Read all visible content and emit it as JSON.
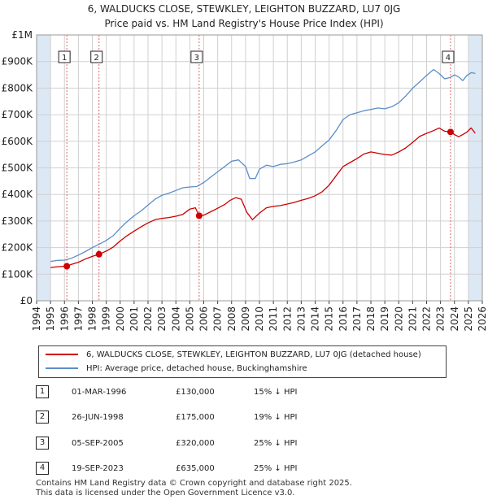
{
  "title_line1": "6, WALDUCKS CLOSE, STEWKLEY, LEIGHTON BUZZARD, LU7 0JG",
  "title_line2": "Price paid vs. HM Land Registry's House Price Index (HPI)",
  "legend": {
    "property": "6, WALDUCKS CLOSE, STEWKLEY, LEIGHTON BUZZARD, LU7 0JG (detached house)",
    "hpi": "HPI: Average price, detached house, Buckinghamshire"
  },
  "colors": {
    "property": "#cc0000",
    "hpi": "#5b8ec9",
    "sale_line": "#e06666",
    "band": "#dde8f5",
    "grid": "#d0d0d0"
  },
  "sales": [
    {
      "num": "1",
      "date": "01-MAR-1996",
      "price": "£130,000",
      "hpi_diff": "15% ↓ HPI"
    },
    {
      "num": "2",
      "date": "26-JUN-1998",
      "price": "£175,000",
      "hpi_diff": "19% ↓ HPI"
    },
    {
      "num": "3",
      "date": "05-SEP-2005",
      "price": "£320,000",
      "hpi_diff": "25% ↓ HPI"
    },
    {
      "num": "4",
      "date": "19-SEP-2023",
      "price": "£635,000",
      "hpi_diff": "25% ↓ HPI"
    }
  ],
  "footer_line1": "Contains HM Land Registry data © Crown copyright and database right 2025.",
  "footer_line2": "This data is licensed under the Open Government Licence v3.0.",
  "chart_data": {
    "type": "line",
    "title": "6, WALDUCKS CLOSE, STEWKLEY, LEIGHTON BUZZARD, LU7 0JG",
    "subtitle": "Price paid vs. HM Land Registry's House Price Index (HPI)",
    "xlim": [
      1994,
      2026
    ],
    "ylim": [
      0,
      1000000
    ],
    "x_ticks": [
      1994,
      1995,
      1996,
      1997,
      1998,
      1999,
      2000,
      2001,
      2002,
      2003,
      2004,
      2005,
      2006,
      2007,
      2008,
      2009,
      2010,
      2011,
      2012,
      2013,
      2014,
      2015,
      2016,
      2017,
      2018,
      2019,
      2020,
      2021,
      2022,
      2023,
      2024,
      2025,
      2026
    ],
    "y_ticks": [
      0,
      100000,
      200000,
      300000,
      400000,
      500000,
      600000,
      700000,
      800000,
      900000,
      1000000
    ],
    "y_tick_labels": [
      "£0",
      "£100K",
      "£200K",
      "£300K",
      "£400K",
      "£500K",
      "£600K",
      "£700K",
      "£800K",
      "£900K",
      "£1M"
    ],
    "shaded_x_ranges": [
      [
        1994,
        1995
      ],
      [
        2025,
        2026
      ]
    ],
    "series": [
      {
        "name": "6, WALDUCKS CLOSE, STEWKLEY, LEIGHTON BUZZARD, LU7 0JG (detached house)",
        "x": [
          1995.0,
          1995.5,
          1996.0,
          1996.17,
          1996.5,
          1997.0,
          1997.5,
          1998.0,
          1998.48,
          1999.0,
          1999.5,
          2000.0,
          2000.5,
          2001.0,
          2001.5,
          2002.0,
          2002.5,
          2003.0,
          2003.5,
          2004.0,
          2004.5,
          2005.0,
          2005.4,
          2005.67,
          2006.0,
          2006.5,
          2007.0,
          2007.5,
          2007.9,
          2008.3,
          2008.7,
          2009.1,
          2009.5,
          2010.0,
          2010.5,
          2011.0,
          2011.5,
          2012.0,
          2012.5,
          2013.0,
          2013.5,
          2014.0,
          2014.5,
          2015.0,
          2015.5,
          2016.0,
          2016.5,
          2017.0,
          2017.5,
          2018.0,
          2018.5,
          2019.0,
          2019.5,
          2020.0,
          2020.5,
          2021.0,
          2021.5,
          2022.0,
          2022.5,
          2022.9,
          2023.3,
          2023.72,
          2024.0,
          2024.3,
          2024.6,
          2024.9,
          2025.2,
          2025.5
        ],
        "y": [
          125000,
          128000,
          130000,
          130000,
          137000,
          145000,
          157000,
          167000,
          175000,
          187000,
          202000,
          225000,
          245000,
          262000,
          278000,
          293000,
          305000,
          310000,
          313000,
          318000,
          325000,
          345000,
          350000,
          320000,
          322000,
          335000,
          348000,
          362000,
          378000,
          388000,
          382000,
          332000,
          305000,
          330000,
          350000,
          355000,
          358000,
          364000,
          370000,
          378000,
          385000,
          395000,
          410000,
          435000,
          470000,
          505000,
          520000,
          535000,
          552000,
          560000,
          555000,
          550000,
          548000,
          560000,
          575000,
          596000,
          618000,
          630000,
          640000,
          650000,
          638000,
          635000,
          625000,
          617000,
          625000,
          635000,
          650000,
          630000
        ],
        "color": "#cc0000"
      },
      {
        "name": "HPI: Average price, detached house, Buckinghamshire",
        "x": [
          1995.0,
          1995.5,
          1996.0,
          1996.5,
          1997.0,
          1997.5,
          1998.0,
          1998.5,
          1999.0,
          1999.5,
          2000.0,
          2000.5,
          2001.0,
          2001.5,
          2002.0,
          2002.5,
          2003.0,
          2003.5,
          2004.0,
          2004.5,
          2005.0,
          2005.5,
          2006.0,
          2006.5,
          2007.0,
          2007.5,
          2008.0,
          2008.5,
          2009.0,
          2009.3,
          2009.7,
          2010.0,
          2010.5,
          2011.0,
          2011.5,
          2012.0,
          2012.5,
          2013.0,
          2013.5,
          2014.0,
          2014.5,
          2015.0,
          2015.5,
          2016.0,
          2016.5,
          2017.0,
          2017.5,
          2018.0,
          2018.5,
          2019.0,
          2019.5,
          2020.0,
          2020.5,
          2021.0,
          2021.5,
          2022.0,
          2022.5,
          2022.9,
          2023.3,
          2023.7,
          2024.0,
          2024.3,
          2024.6,
          2024.9,
          2025.2,
          2025.5
        ],
        "y": [
          148000,
          152000,
          153000,
          160000,
          172000,
          185000,
          200000,
          213000,
          227000,
          245000,
          273000,
          298000,
          320000,
          338000,
          360000,
          382000,
          397000,
          405000,
          415000,
          425000,
          428000,
          430000,
          445000,
          465000,
          485000,
          505000,
          525000,
          530000,
          505000,
          460000,
          460000,
          495000,
          510000,
          505000,
          513000,
          516000,
          522000,
          530000,
          545000,
          560000,
          583000,
          605000,
          640000,
          682000,
          700000,
          707000,
          715000,
          720000,
          725000,
          722000,
          730000,
          745000,
          770000,
          800000,
          823000,
          848000,
          870000,
          855000,
          835000,
          840000,
          850000,
          842000,
          828000,
          848000,
          858000,
          855000
        ],
        "color": "#5b8ec9"
      }
    ],
    "sale_points": [
      {
        "label": "1",
        "x": 1996.17,
        "y": 130000
      },
      {
        "label": "2",
        "x": 1998.48,
        "y": 175000
      },
      {
        "label": "3",
        "x": 2005.67,
        "y": 320000
      },
      {
        "label": "4",
        "x": 2023.72,
        "y": 635000
      }
    ]
  }
}
